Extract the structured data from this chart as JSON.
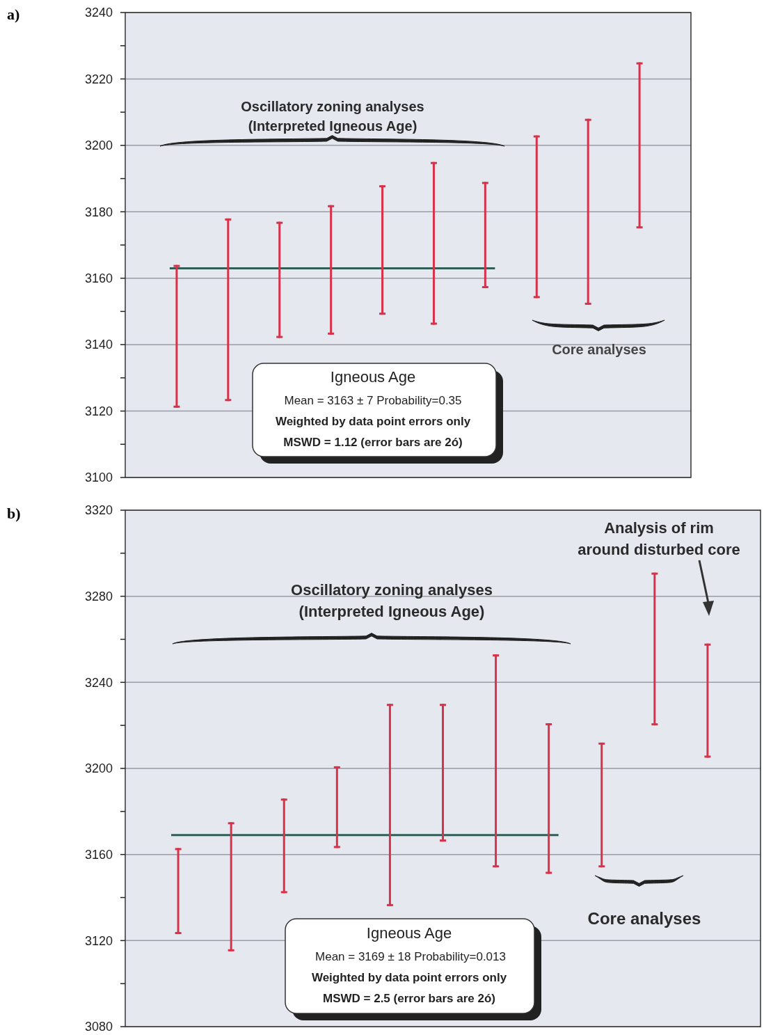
{
  "chart_data": [
    {
      "type": "bar",
      "title": "a)",
      "categories": [
        null,
        null,
        null,
        null,
        null,
        null,
        null,
        null,
        null,
        null
      ],
      "series": [
        {
          "color": "#d8324a",
          "base": [
            3121,
            3123,
            3142,
            3143,
            3149,
            3146,
            3157,
            3154,
            3152,
            3175
          ],
          "values": [
            43,
            55,
            35,
            39,
            39,
            49,
            32,
            49,
            56,
            50
          ]
        }
      ],
      "ref_lines": [
        {
          "axis": "y",
          "value": 3163,
          "color": "#2e5e55"
        }
      ],
      "ylim": [
        3100,
        3240
      ],
      "yticks": [
        3100,
        {
          "value": 3110,
          "label": null
        },
        3120,
        {
          "value": 3130,
          "label": null
        },
        3140,
        {
          "value": 3150,
          "label": null
        },
        3160,
        {
          "value": 3170,
          "label": null
        },
        3180,
        {
          "value": 3190,
          "label": null
        },
        3200,
        {
          "value": 3210,
          "label": null
        },
        3220,
        {
          "value": 3230,
          "label": null
        },
        3240
      ],
      "grid": "y",
      "tick_labels": "y",
      "annotations": [
        "Oscillatory zoning analyses\n(Interpreted Igneous Age)",
        "Core analyses",
        "Igneous Age",
        "Mean = 3163 ± 7   Probability=0.35",
        "Weighted by data point errors only",
        "MSWD = 1.12  (error bars are 2ó)"
      ]
    },
    {
      "type": "bar",
      "title": "b)",
      "categories": [
        null,
        null,
        null,
        null,
        null,
        null,
        null,
        null,
        null,
        null,
        null
      ],
      "series": [
        {
          "color": "#d8324a",
          "base": [
            3123,
            3115,
            3142,
            3163,
            3136,
            3166,
            3154,
            3151,
            3154,
            3220,
            3205
          ],
          "values": [
            40,
            60,
            44,
            38,
            94,
            64,
            99,
            70,
            58,
            71,
            53
          ]
        }
      ],
      "ref_lines": [
        {
          "axis": "y",
          "value": 3169,
          "color": "#2e5e55"
        }
      ],
      "ylim": [
        3080,
        3320
      ],
      "yticks": [
        3080,
        {
          "value": 3100,
          "label": null
        },
        3120,
        {
          "value": 3140,
          "label": null
        },
        3160,
        {
          "value": 3180,
          "label": null
        },
        3200,
        {
          "value": 3220,
          "label": null
        },
        3240,
        {
          "value": 3260,
          "label": null
        },
        3280,
        {
          "value": 3300,
          "label": null
        },
        3320
      ],
      "grid": "y",
      "tick_labels": "y",
      "annotations": [
        "Oscillatory zoning analyses\n(Interpreted Igneous Age)",
        "Core analyses",
        "Analysis of rim\naround disturbed core",
        "Igneous Age",
        "Mean = 3169 ± 18  Probability=0.013",
        "Weighted by data point errors only",
        "MSWD = 2.5  (error bars are 2ó)"
      ]
    }
  ]
}
